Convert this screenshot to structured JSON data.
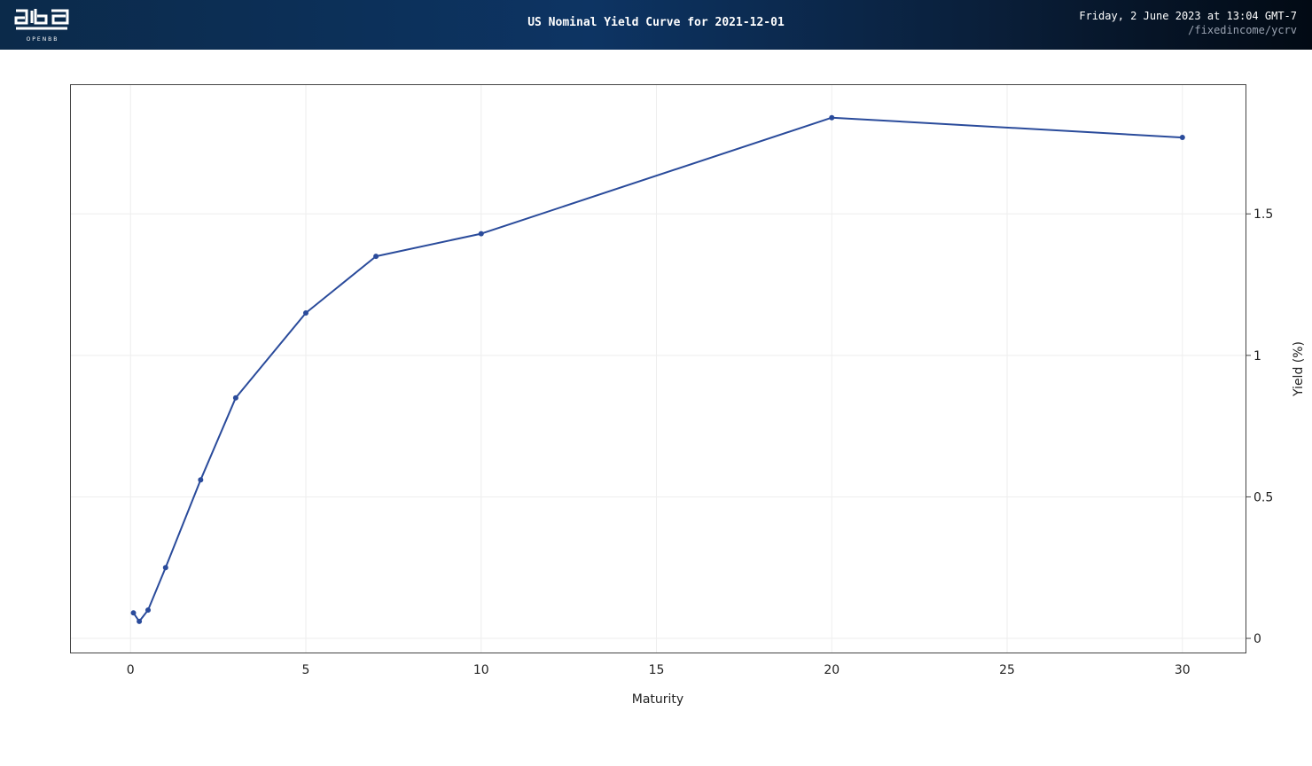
{
  "header": {
    "logo_text": "OPENBB",
    "title": "US Nominal Yield Curve for 2021-12-01",
    "timestamp": "Friday, 2 June 2023 at 13:04 GMT-7",
    "command": "/fixedincome/ycrv"
  },
  "colors": {
    "header_start": "#0b2a4a",
    "header_end": "#020a14",
    "line": "#2a4b9b",
    "grid": "#eeeeee",
    "frame": "#444444"
  },
  "chart_data": {
    "type": "line",
    "title": "US Nominal Yield Curve for 2021-12-01",
    "xlabel": "Maturity",
    "ylabel": "Yield (%)",
    "xlim": [
      -1.7,
      31.8
    ],
    "ylim": [
      -0.05,
      1.955
    ],
    "x_ticks": [
      0,
      5,
      10,
      15,
      20,
      25,
      30
    ],
    "y_ticks": [
      0,
      0.5,
      1,
      1.5
    ],
    "y_axis_side": "right",
    "grid": true,
    "legend": "none",
    "series": [
      {
        "x": [
          0.083,
          0.25,
          0.5,
          1,
          2,
          3,
          5,
          7,
          10,
          20,
          30
        ],
        "y": [
          0.09,
          0.06,
          0.1,
          0.25,
          0.56,
          0.85,
          1.15,
          1.35,
          1.43,
          1.84,
          1.77
        ]
      }
    ]
  }
}
